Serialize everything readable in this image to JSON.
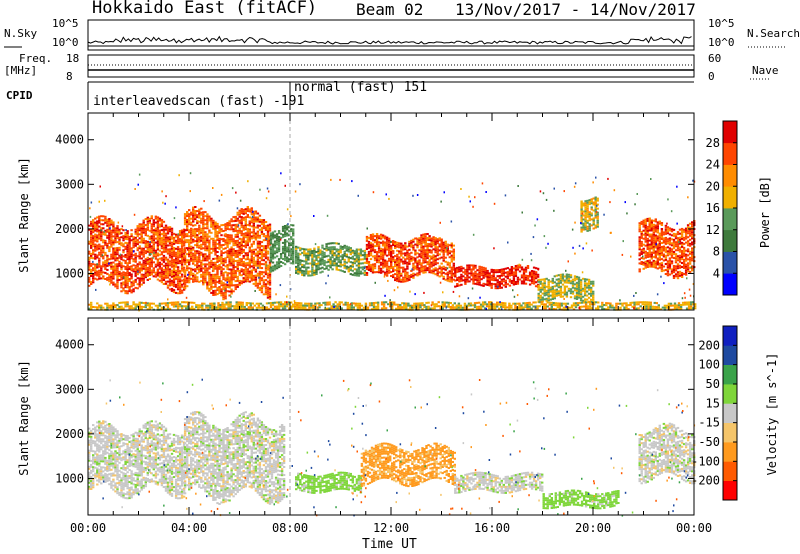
{
  "header": {
    "station": "Hokkaido East (fitACF)",
    "beam": "Beam 02",
    "dates": "13/Nov/2017 - 14/Nov/2017"
  },
  "panels": {
    "nsky": {
      "label": "N.Sky",
      "ticks": [
        "10^5",
        "10^0"
      ],
      "right_ticks": [
        "10^5",
        "10^0"
      ],
      "right_label": "N.Search"
    },
    "freq": {
      "label_top": "Freq.",
      "label_unit": "[MHz]",
      "ticks": [
        "18",
        "8"
      ],
      "right_ticks": [
        "60",
        "0"
      ],
      "right_label": "Nave"
    },
    "cpid": {
      "label": "CPID",
      "segments": [
        {
          "label": "interleavedscan (fast) -191",
          "start": "00:00",
          "end": "08:00"
        },
        {
          "label": "normal (fast) 151",
          "start": "08:00",
          "end": "24:00"
        }
      ]
    }
  },
  "colors": {
    "power": [
      "#0000ff",
      "#2a52a8",
      "#3e7a3c",
      "#5a9a5a",
      "#f0b000",
      "#ff8c00",
      "#ff4500",
      "#e00000"
    ],
    "velocity": [
      "#ff0000",
      "#ff5a00",
      "#ff9a1e",
      "#f5c56a",
      "#c8c8c8",
      "#7fd63a",
      "#3aa34a",
      "#1e4aa0",
      "#1020c0"
    ],
    "frame": "#000000"
  },
  "chart_data": [
    {
      "type": "heatmap",
      "title": "Power",
      "ylabel": "Slant Range [km]",
      "xlabel": "Time UT",
      "x_ticks": [
        "00:00",
        "04:00",
        "08:00",
        "12:00",
        "16:00",
        "20:00",
        "00:00"
      ],
      "xlim_hours": [
        0,
        24
      ],
      "y_ticks": [
        1000,
        2000,
        3000,
        4000
      ],
      "ylim": [
        180,
        4600
      ],
      "colorbar": {
        "label": "Power [dB]",
        "ticks": [
          4,
          8,
          12,
          16,
          20,
          24,
          28
        ],
        "range": [
          0,
          32
        ]
      },
      "echo_regions": [
        {
          "t": [
            0.0,
            3.8
          ],
          "range": [
            700,
            2100
          ],
          "value": 26
        },
        {
          "t": [
            3.8,
            7.2
          ],
          "range": [
            600,
            2300
          ],
          "value": 25
        },
        {
          "t": [
            7.2,
            8.1
          ],
          "range": [
            1100,
            2000
          ],
          "value": 12
        },
        {
          "t": [
            8.2,
            11.0
          ],
          "range": [
            1000,
            1600
          ],
          "value": 14
        },
        {
          "t": [
            11.0,
            14.5
          ],
          "range": [
            900,
            1800
          ],
          "value": 26
        },
        {
          "t": [
            14.5,
            17.8
          ],
          "range": [
            700,
            1150
          ],
          "value": 28
        },
        {
          "t": [
            17.8,
            20.0
          ],
          "range": [
            400,
            900
          ],
          "value": 16
        },
        {
          "t": [
            19.5,
            20.2
          ],
          "range": [
            2000,
            2700
          ],
          "value": 18
        },
        {
          "t": [
            21.8,
            24.0
          ],
          "range": [
            1000,
            2100
          ],
          "value": 26
        },
        {
          "t": [
            0.0,
            24.0
          ],
          "range": [
            180,
            320
          ],
          "value": 18
        }
      ]
    },
    {
      "type": "heatmap",
      "title": "Velocity",
      "ylabel": "Slant Range [km]",
      "xlabel": "Time UT",
      "x_ticks": [
        "00:00",
        "04:00",
        "08:00",
        "12:00",
        "16:00",
        "20:00",
        "00:00"
      ],
      "xlim_hours": [
        0,
        24
      ],
      "y_ticks": [
        1000,
        2000,
        3000,
        4000
      ],
      "ylim": [
        180,
        4600
      ],
      "colorbar": {
        "label": "Velocity [m s^-1]",
        "ticks": [
          200,
          100,
          50,
          15,
          -15,
          -50,
          -100,
          -200
        ],
        "range": [
          -250,
          250
        ]
      },
      "echo_regions": [
        {
          "t": [
            0.0,
            3.8
          ],
          "range": [
            700,
            2100
          ],
          "value": 0
        },
        {
          "t": [
            3.8,
            7.8
          ],
          "range": [
            600,
            2300
          ],
          "value": 0
        },
        {
          "t": [
            8.2,
            10.8
          ],
          "range": [
            700,
            1100
          ],
          "value": 30
        },
        {
          "t": [
            10.8,
            14.5
          ],
          "range": [
            900,
            1700
          ],
          "value": -60
        },
        {
          "t": [
            14.5,
            18.0
          ],
          "range": [
            700,
            1100
          ],
          "value": 0
        },
        {
          "t": [
            18.0,
            21.0
          ],
          "range": [
            350,
            700
          ],
          "value": 30
        },
        {
          "t": [
            21.8,
            24.0
          ],
          "range": [
            1000,
            2100
          ],
          "value": 0
        }
      ]
    }
  ]
}
